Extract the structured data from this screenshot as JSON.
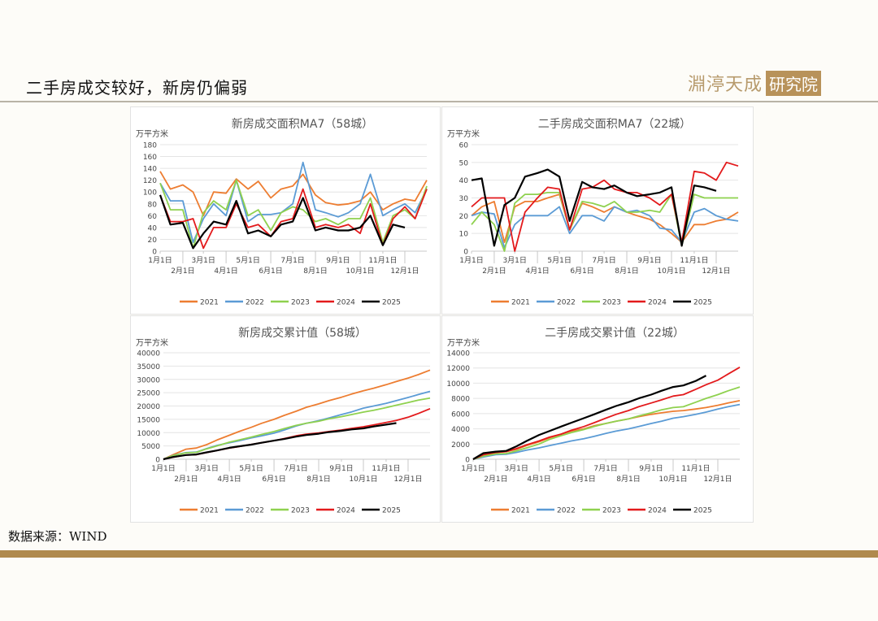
{
  "header": {
    "title": "二手房成交较好，新房仍偏弱",
    "logo_main": "淵渟天成",
    "logo_box": "研究院"
  },
  "footer": {
    "source": "数据来源：WIND"
  },
  "colors": {
    "2021": "#ED7D31",
    "2022": "#5B9BD5",
    "2023": "#8FD14F",
    "2024": "#E31A1C",
    "2025": "#000000",
    "accent": "#B08A4E"
  },
  "chart_data": [
    {
      "type": "line",
      "title": "新房成交面积MA7（58城）",
      "ylabel": "万平方米",
      "ylim": [
        0,
        180
      ],
      "y_ticks": [
        "0",
        "20",
        "40",
        "60",
        "80",
        "100",
        "120",
        "140",
        "160",
        "180"
      ],
      "x_ticks": [
        "1月1日",
        "2月1日",
        "3月1日",
        "4月1日",
        "5月1日",
        "6月1日",
        "7月1日",
        "8月1日",
        "9月1日",
        "10月1日",
        "11月1日",
        "12月1日"
      ],
      "grid": true,
      "legend": "bottom",
      "x": [
        "01-01",
        "01-15",
        "02-01",
        "02-15",
        "03-01",
        "03-15",
        "04-01",
        "04-15",
        "05-01",
        "05-15",
        "06-01",
        "06-15",
        "07-01",
        "07-15",
        "08-01",
        "08-15",
        "09-01",
        "09-15",
        "10-01",
        "10-15",
        "11-01",
        "11-15",
        "12-01",
        "12-15",
        "12-31"
      ],
      "series": [
        {
          "name": "2021",
          "values": [
            135,
            105,
            112,
            100,
            60,
            100,
            98,
            122,
            105,
            118,
            90,
            105,
            110,
            130,
            95,
            82,
            78,
            80,
            85,
            100,
            70,
            80,
            88,
            85,
            120
          ]
        },
        {
          "name": "2022",
          "values": [
            115,
            85,
            85,
            15,
            55,
            80,
            60,
            120,
            50,
            62,
            62,
            65,
            80,
            150,
            70,
            65,
            58,
            65,
            80,
            130,
            60,
            70,
            80,
            65,
            105
          ]
        },
        {
          "name": "2023",
          "values": [
            115,
            70,
            70,
            5,
            65,
            85,
            70,
            120,
            60,
            70,
            35,
            65,
            75,
            70,
            50,
            55,
            45,
            55,
            55,
            90,
            15,
            60,
            70,
            55,
            110
          ]
        },
        {
          "name": "2024",
          "values": [
            95,
            50,
            50,
            55,
            5,
            40,
            40,
            80,
            40,
            45,
            25,
            50,
            55,
            105,
            40,
            45,
            40,
            45,
            30,
            80,
            10,
            55,
            75,
            55,
            105
          ]
        },
        {
          "name": "2025",
          "values": [
            95,
            45,
            48,
            5,
            30,
            50,
            45,
            85,
            30,
            35,
            25,
            45,
            50,
            90,
            35,
            40,
            35,
            35,
            40,
            60,
            10,
            45,
            40,
            null,
            null
          ]
        }
      ]
    },
    {
      "type": "line",
      "title": "二手房成交面积MA7（22城）",
      "ylabel": "万平方米",
      "ylim": [
        0,
        60
      ],
      "y_ticks": [
        "0",
        "10",
        "20",
        "30",
        "40",
        "50",
        "60"
      ],
      "x_ticks": [
        "1月1日",
        "2月1日",
        "3月1日",
        "4月1日",
        "5月1日",
        "6月1日",
        "7月1日",
        "8月1日",
        "9月1日",
        "10月1日",
        "11月1日",
        "12月1日"
      ],
      "grid": true,
      "legend": "bottom",
      "x": [
        "01-01",
        "01-15",
        "02-01",
        "02-15",
        "03-01",
        "03-15",
        "04-01",
        "04-15",
        "05-01",
        "05-15",
        "06-01",
        "06-15",
        "07-01",
        "07-15",
        "08-01",
        "08-15",
        "09-01",
        "09-15",
        "10-01",
        "10-15",
        "11-01",
        "11-15",
        "12-01",
        "12-15",
        "12-31"
      ],
      "series": [
        {
          "name": "2021",
          "values": [
            20,
            25,
            28,
            5,
            25,
            28,
            28,
            30,
            32,
            12,
            27,
            25,
            22,
            25,
            22,
            20,
            18,
            15,
            10,
            5,
            15,
            15,
            17,
            18,
            22
          ]
        },
        {
          "name": "2022",
          "values": [
            20,
            22,
            21,
            2,
            15,
            20,
            20,
            20,
            25,
            10,
            20,
            20,
            17,
            25,
            22,
            23,
            20,
            13,
            12,
            5,
            22,
            24,
            20,
            18,
            17
          ]
        },
        {
          "name": "2023",
          "values": [
            15,
            22,
            15,
            0,
            27,
            32,
            32,
            33,
            33,
            12,
            28,
            27,
            25,
            28,
            22,
            22,
            23,
            22,
            32,
            3,
            32,
            30,
            30,
            30,
            30
          ]
        },
        {
          "name": "2024",
          "values": [
            25,
            30,
            30,
            30,
            0,
            22,
            30,
            36,
            35,
            12,
            35,
            36,
            40,
            35,
            33,
            33,
            30,
            26,
            32,
            5,
            45,
            44,
            40,
            50,
            48
          ]
        },
        {
          "name": "2025",
          "values": [
            40,
            41,
            3,
            26,
            30,
            42,
            44,
            46,
            42,
            17,
            39,
            36,
            35,
            37,
            33,
            31,
            32,
            33,
            36,
            3,
            37,
            36,
            34,
            null,
            null
          ]
        }
      ]
    },
    {
      "type": "line",
      "title": "新房成交累计值（58城）",
      "ylabel": "万平方米",
      "ylim": [
        0,
        40000
      ],
      "y_ticks": [
        "0",
        "5000",
        "10000",
        "15000",
        "20000",
        "25000",
        "30000",
        "35000",
        "40000"
      ],
      "x_ticks": [
        "1月1日",
        "2月1日",
        "3月1日",
        "4月1日",
        "5月1日",
        "6月1日",
        "7月1日",
        "8月1日",
        "9月1日",
        "10月1日",
        "11月1日",
        "12月1日"
      ],
      "grid": true,
      "legend": "bottom",
      "x": [
        "01-01",
        "01-15",
        "02-01",
        "02-15",
        "03-01",
        "03-15",
        "04-01",
        "04-15",
        "05-01",
        "05-15",
        "06-01",
        "06-15",
        "07-01",
        "07-15",
        "08-01",
        "08-15",
        "09-01",
        "09-15",
        "10-01",
        "10-15",
        "11-01",
        "11-15",
        "12-01",
        "12-15",
        "12-31"
      ],
      "series": [
        {
          "name": "2021",
          "values": [
            0,
            1800,
            3800,
            4200,
            5500,
            7200,
            9000,
            10500,
            12000,
            13500,
            15000,
            16500,
            18000,
            19500,
            20800,
            22000,
            23300,
            24500,
            25700,
            26700,
            28000,
            29200,
            30500,
            31800,
            33500
          ]
        },
        {
          "name": "2022",
          "values": [
            0,
            1500,
            2500,
            2700,
            4000,
            5200,
            6200,
            7000,
            8000,
            8800,
            9800,
            11000,
            12500,
            13500,
            14500,
            15500,
            16800,
            17800,
            19200,
            20000,
            21000,
            22000,
            23200,
            24300,
            25500
          ]
        },
        {
          "name": "2023",
          "values": [
            0,
            1400,
            2400,
            2600,
            3900,
            5000,
            6400,
            7300,
            8300,
            9300,
            10400,
            11500,
            12700,
            13500,
            14300,
            15200,
            16000,
            16800,
            17700,
            18400,
            19400,
            20300,
            21300,
            22200,
            23000
          ]
        },
        {
          "name": "2024",
          "values": [
            0,
            800,
            1600,
            1700,
            2500,
            3300,
            4200,
            4800,
            5600,
            6200,
            7000,
            7800,
            8800,
            9400,
            9900,
            10400,
            11000,
            11600,
            12200,
            12900,
            13800,
            14600,
            15800,
            17200,
            19000
          ]
        },
        {
          "name": "2025",
          "values": [
            0,
            900,
            1600,
            1800,
            2600,
            3300,
            4300,
            4900,
            5500,
            6200,
            7000,
            7600,
            8500,
            9100,
            9600,
            10200,
            10700,
            11200,
            11600,
            12300,
            13000,
            13600,
            null,
            null,
            null
          ]
        }
      ]
    },
    {
      "type": "line",
      "title": "二手房成交累计值（22城）",
      "ylabel": "万平方米",
      "ylim": [
        0,
        14000
      ],
      "y_ticks": [
        "0",
        "2000",
        "4000",
        "6000",
        "8000",
        "10000",
        "12000",
        "14000"
      ],
      "x_ticks": [
        "1月1日",
        "2月1日",
        "3月1日",
        "4月1日",
        "5月1日",
        "6月1日",
        "7月1日",
        "8月1日",
        "9月1日",
        "10月1日",
        "11月1日",
        "12月1日"
      ],
      "grid": true,
      "legend": "bottom",
      "x": [
        "01-01",
        "01-15",
        "02-01",
        "02-15",
        "03-01",
        "03-15",
        "04-01",
        "04-15",
        "05-01",
        "05-15",
        "06-01",
        "06-15",
        "07-01",
        "07-15",
        "08-01",
        "08-15",
        "09-01",
        "09-15",
        "10-01",
        "10-15",
        "11-01",
        "11-15",
        "12-01",
        "12-15",
        "12-31"
      ],
      "series": [
        {
          "name": "2021",
          "values": [
            0,
            500,
            900,
            1000,
            1300,
            1800,
            2300,
            2800,
            3300,
            3700,
            4000,
            4400,
            4700,
            5000,
            5300,
            5600,
            5900,
            6100,
            6300,
            6400,
            6600,
            6800,
            7100,
            7400,
            7700
          ]
        },
        {
          "name": "2022",
          "values": [
            0,
            300,
            600,
            650,
            900,
            1200,
            1500,
            1800,
            2100,
            2400,
            2700,
            3000,
            3400,
            3700,
            4000,
            4300,
            4700,
            5000,
            5400,
            5600,
            5900,
            6200,
            6600,
            6900,
            7200
          ]
        },
        {
          "name": "2023",
          "values": [
            0,
            400,
            700,
            750,
            1100,
            1500,
            2000,
            2600,
            3100,
            3500,
            3900,
            4300,
            4700,
            5000,
            5300,
            5700,
            6100,
            6500,
            6800,
            6900,
            7500,
            8000,
            8500,
            9000,
            9500
          ]
        },
        {
          "name": "2024",
          "values": [
            0,
            600,
            900,
            1000,
            1400,
            1900,
            2400,
            2900,
            3300,
            3800,
            4300,
            4800,
            5400,
            5900,
            6400,
            6900,
            7400,
            7800,
            8300,
            8500,
            9200,
            9800,
            10400,
            11200,
            12100
          ]
        },
        {
          "name": "2025",
          "values": [
            0,
            800,
            1000,
            1100,
            1700,
            2400,
            3200,
            3700,
            4300,
            4800,
            5400,
            5900,
            6500,
            7000,
            7500,
            8000,
            8500,
            9000,
            9500,
            9700,
            10300,
            11000,
            null,
            null,
            null
          ]
        }
      ]
    }
  ]
}
